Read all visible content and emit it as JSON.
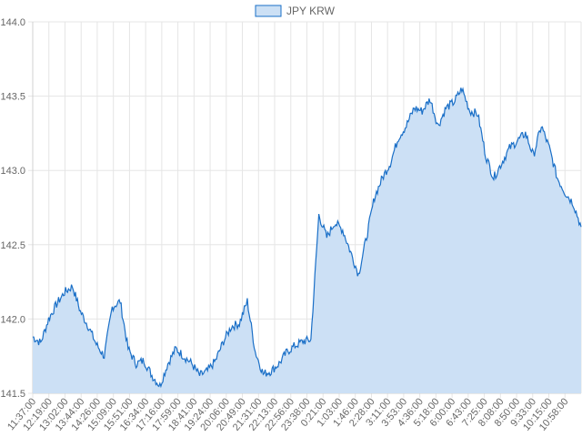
{
  "chart_data": {
    "type": "area",
    "legend": {
      "label": "JPY KRW",
      "position": "top-center"
    },
    "colors": {
      "line": "#1a6fc7",
      "fill": "#cce0f5",
      "grid": "#e5e5e5",
      "axis": "#999999"
    },
    "grid": true,
    "ylim": [
      141.5,
      144.0
    ],
    "y_ticks": [
      "141.5",
      "142.0",
      "142.5",
      "143.0",
      "143.5",
      "144.0"
    ],
    "x_ticks": [
      "11:37:00",
      "12:19:00",
      "13:02:00",
      "13:44:00",
      "14:26:00",
      "15:09:00",
      "15:51:00",
      "16:34:00",
      "17:16:00",
      "17:59:00",
      "18:41:00",
      "19:24:00",
      "20:06:00",
      "20:49:00",
      "21:31:00",
      "22:13:00",
      "22:56:00",
      "23:38:00",
      "0:21:00",
      "1:03:00",
      "1:46:00",
      "2:28:00",
      "3:11:00",
      "3:53:00",
      "4:36:00",
      "5:18:00",
      "6:00:00",
      "6:43:00",
      "7:25:00",
      "8:08:00",
      "8:50:00",
      "9:33:00",
      "10:15:00",
      "10:58:00"
    ],
    "series": [
      {
        "name": "JPY KRW",
        "values": [
          141.88,
          141.84,
          142.0,
          142.1,
          142.18,
          142.22,
          142.05,
          141.95,
          141.83,
          141.75,
          142.08,
          142.12,
          141.8,
          141.7,
          141.72,
          141.62,
          141.55,
          141.7,
          141.8,
          141.75,
          141.7,
          141.62,
          141.65,
          141.72,
          141.85,
          141.95,
          141.97,
          142.12,
          141.78,
          141.63,
          141.65,
          141.7,
          141.78,
          141.82,
          141.85,
          141.86,
          142.7,
          142.55,
          142.65,
          142.6,
          142.45,
          142.3,
          142.55,
          142.82,
          142.95,
          143.05,
          143.22,
          143.3,
          143.42,
          143.4,
          143.48,
          143.3,
          143.42,
          143.46,
          143.55,
          143.4,
          143.38,
          143.1,
          142.95,
          143.05,
          143.15,
          143.2,
          143.25,
          143.1,
          143.3,
          143.15,
          142.95,
          142.85,
          142.78,
          142.62
        ]
      }
    ]
  }
}
